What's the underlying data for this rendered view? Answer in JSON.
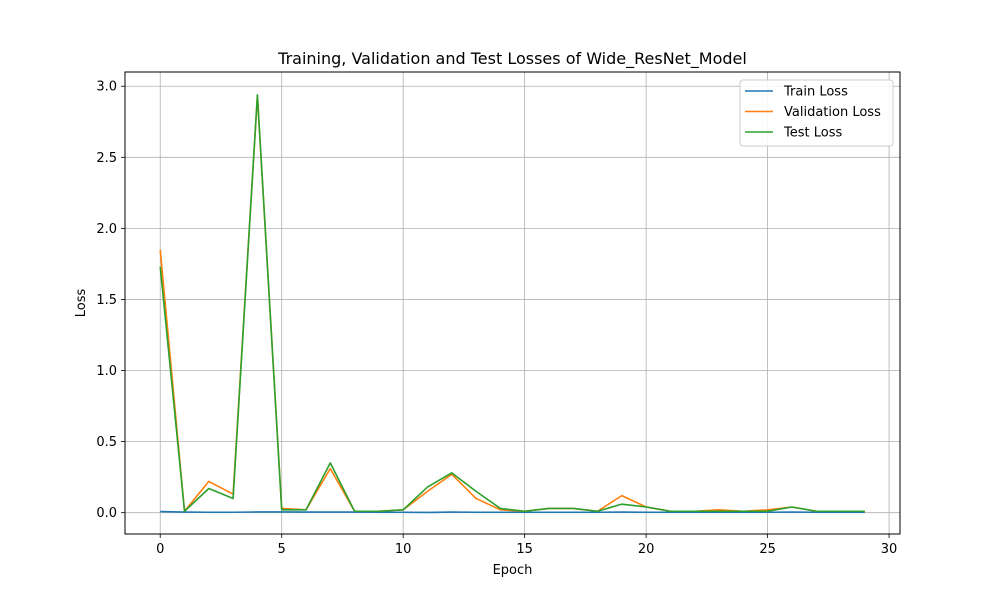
{
  "chart_data": {
    "type": "line",
    "title": "Training, Validation and Test Losses of Wide_ResNet_Model",
    "xlabel": "Epoch",
    "ylabel": "Loss",
    "xlim": [
      -1.45,
      30.45
    ],
    "ylim": [
      -0.15,
      3.1
    ],
    "xticks": [
      0,
      5,
      10,
      15,
      20,
      25,
      30
    ],
    "yticks": [
      0.0,
      0.5,
      1.0,
      1.5,
      2.0,
      2.5,
      3.0
    ],
    "xtick_labels": [
      "0",
      "5",
      "10",
      "15",
      "20",
      "25",
      "30"
    ],
    "ytick_labels": [
      "0.0",
      "0.5",
      "1.0",
      "1.5",
      "2.0",
      "2.5",
      "3.0"
    ],
    "grid": true,
    "legend_position": "top-right",
    "x": [
      0,
      1,
      2,
      3,
      4,
      5,
      6,
      7,
      8,
      9,
      10,
      11,
      12,
      13,
      14,
      15,
      16,
      17,
      18,
      19,
      20,
      21,
      22,
      23,
      24,
      25,
      26,
      27,
      28,
      29
    ],
    "series": [
      {
        "name": "Train Loss",
        "color": "#1f77b4",
        "values": [
          0.008,
          0.004,
          0.003,
          0.003,
          0.005,
          0.005,
          0.004,
          0.004,
          0.004,
          0.003,
          0.003,
          0.002,
          0.004,
          0.003,
          0.003,
          0.003,
          0.003,
          0.003,
          0.003,
          0.004,
          0.003,
          0.003,
          0.003,
          0.003,
          0.003,
          0.003,
          0.004,
          0.003,
          0.003,
          0.003
        ]
      },
      {
        "name": "Validation Loss",
        "color": "#ff7f0e",
        "values": [
          1.85,
          0.01,
          0.22,
          0.13,
          2.93,
          0.03,
          0.02,
          0.31,
          0.01,
          0.01,
          0.02,
          0.15,
          0.27,
          0.1,
          0.02,
          0.01,
          0.03,
          0.03,
          0.01,
          0.12,
          0.04,
          0.01,
          0.01,
          0.02,
          0.01,
          0.02,
          0.04,
          0.01,
          0.01,
          0.01
        ]
      },
      {
        "name": "Test Loss",
        "color": "#2ca02c",
        "values": [
          1.73,
          0.01,
          0.17,
          0.1,
          2.94,
          0.02,
          0.02,
          0.35,
          0.01,
          0.01,
          0.02,
          0.18,
          0.28,
          0.15,
          0.03,
          0.01,
          0.03,
          0.03,
          0.01,
          0.06,
          0.04,
          0.01,
          0.01,
          0.01,
          0.01,
          0.01,
          0.04,
          0.01,
          0.01,
          0.01
        ]
      }
    ]
  }
}
